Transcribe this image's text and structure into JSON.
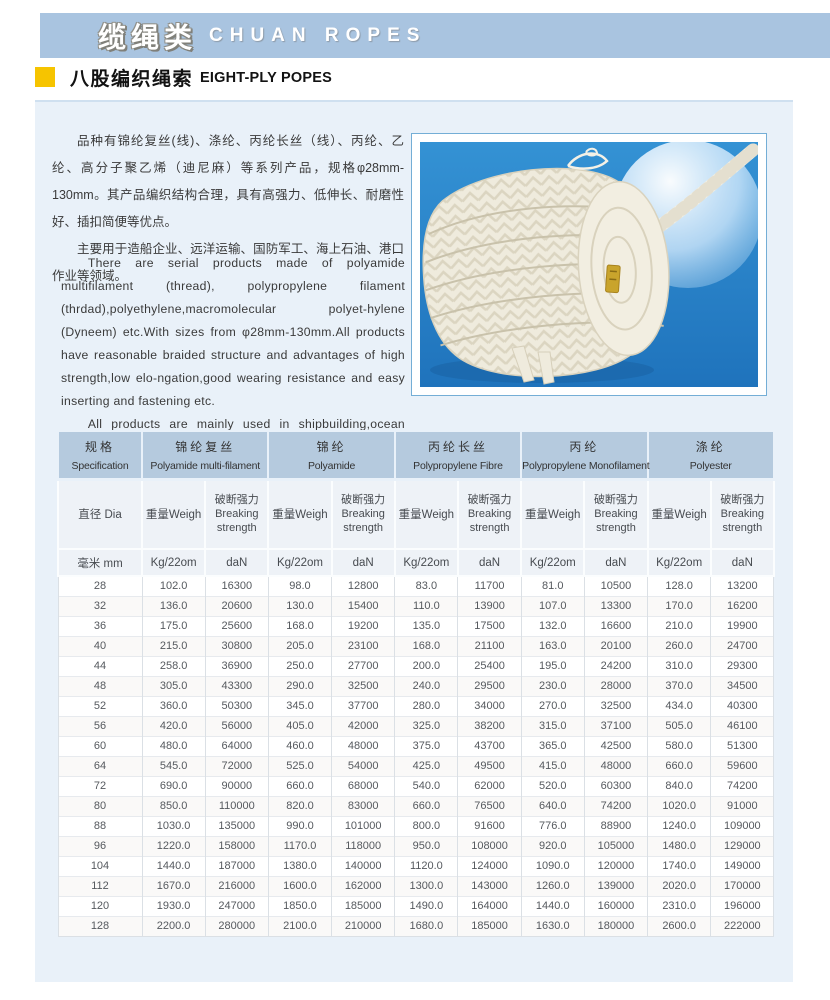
{
  "header": {
    "title_zh": "缆绳类",
    "title_en": "CHUAN ROPES",
    "subtitle_zh": "八股编织绳索",
    "subtitle_en": "EIGHT-PLY POPES"
  },
  "intro": {
    "zh_p1": "品种有锦纶复丝(线)、涤纶、丙纶长丝（线）、丙纶、乙纶、高分子聚乙烯（迪尼麻）等系列产品，规格φ28mm-130mm。其产品编织结构合理，具有高强力、低伸长、耐磨性好、插扣简便等优点。",
    "zh_p2": "主要用于造船企业、远洋运输、国防军工、海上石油、港口作业等领域。",
    "en_p1": "There are serial products made of polyamide multifilament (thread), polypropylene filament (thrdad),polyethylene,macromolecular polyet-hylene (Dyneem) etc.With sizes from φ28mm-130mm.All products have reasonable braided structure and advantages of high strength,low elo-ngation,good wearing resistance and easy  inserting and fastening etc.",
    "en_p2": "All products are mainly used in shipbuilding,ocean transportation, national defense and military industry,ocean petroleum,harbor works etc."
  },
  "photo_alt": "Coil of white eight-ply braided rope on blue background",
  "table": {
    "groups": [
      {
        "zh": "规格",
        "en": "Specification"
      },
      {
        "zh": "锦纶复丝",
        "en": "Polyamide multi-filament"
      },
      {
        "zh": "锦纶",
        "en": "Polyamide"
      },
      {
        "zh": "丙纶长丝",
        "en": "Polypropylene Fibre"
      },
      {
        "zh": "丙纶",
        "en": "Polypropylene Monofilament"
      },
      {
        "zh": "涤纶",
        "en": "Polyester"
      }
    ],
    "sub": {
      "dia": "直径 Dia",
      "weight": "重量Weigh",
      "strength_lines": [
        "破断强力",
        "Breaking",
        "strength"
      ]
    },
    "units": {
      "dia": "毫米 mm",
      "weight": "Kg/22om",
      "strength": "daN"
    },
    "rows": [
      [
        "28",
        "102.0",
        "16300",
        "98.0",
        "12800",
        "83.0",
        "11700",
        "81.0",
        "10500",
        "128.0",
        "13200"
      ],
      [
        "32",
        "136.0",
        "20600",
        "130.0",
        "15400",
        "110.0",
        "13900",
        "107.0",
        "13300",
        "170.0",
        "16200"
      ],
      [
        "36",
        "175.0",
        "25600",
        "168.0",
        "19200",
        "135.0",
        "17500",
        "132.0",
        "16600",
        "210.0",
        "19900"
      ],
      [
        "40",
        "215.0",
        "30800",
        "205.0",
        "23100",
        "168.0",
        "21100",
        "163.0",
        "20100",
        "260.0",
        "24700"
      ],
      [
        "44",
        "258.0",
        "36900",
        "250.0",
        "27700",
        "200.0",
        "25400",
        "195.0",
        "24200",
        "310.0",
        "29300"
      ],
      [
        "48",
        "305.0",
        "43300",
        "290.0",
        "32500",
        "240.0",
        "29500",
        "230.0",
        "28000",
        "370.0",
        "34500"
      ],
      [
        "52",
        "360.0",
        "50300",
        "345.0",
        "37700",
        "280.0",
        "34000",
        "270.0",
        "32500",
        "434.0",
        "40300"
      ],
      [
        "56",
        "420.0",
        "56000",
        "405.0",
        "42000",
        "325.0",
        "38200",
        "315.0",
        "37100",
        "505.0",
        "46100"
      ],
      [
        "60",
        "480.0",
        "64000",
        "460.0",
        "48000",
        "375.0",
        "43700",
        "365.0",
        "42500",
        "580.0",
        "51300"
      ],
      [
        "64",
        "545.0",
        "72000",
        "525.0",
        "54000",
        "425.0",
        "49500",
        "415.0",
        "48000",
        "660.0",
        "59600"
      ],
      [
        "72",
        "690.0",
        "90000",
        "660.0",
        "68000",
        "540.0",
        "62000",
        "520.0",
        "60300",
        "840.0",
        "74200"
      ],
      [
        "80",
        "850.0",
        "110000",
        "820.0",
        "83000",
        "660.0",
        "76500",
        "640.0",
        "74200",
        "1020.0",
        "91000"
      ],
      [
        "88",
        "1030.0",
        "135000",
        "990.0",
        "101000",
        "800.0",
        "91600",
        "776.0",
        "88900",
        "1240.0",
        "109000"
      ],
      [
        "96",
        "1220.0",
        "158000",
        "1170.0",
        "118000",
        "950.0",
        "108000",
        "920.0",
        "105000",
        "1480.0",
        "129000"
      ],
      [
        "104",
        "1440.0",
        "187000",
        "1380.0",
        "140000",
        "1120.0",
        "124000",
        "1090.0",
        "120000",
        "1740.0",
        "149000"
      ],
      [
        "112",
        "1670.0",
        "216000",
        "1600.0",
        "162000",
        "1300.0",
        "143000",
        "1260.0",
        "139000",
        "2020.0",
        "170000"
      ],
      [
        "120",
        "1930.0",
        "247000",
        "1850.0",
        "185000",
        "1490.0",
        "164000",
        "1440.0",
        "160000",
        "2310.0",
        "196000"
      ],
      [
        "128",
        "2200.0",
        "280000",
        "2100.0",
        "210000",
        "1680.0",
        "185000",
        "1630.0",
        "180000",
        "2600.0",
        "222000"
      ]
    ]
  },
  "colors": {
    "title_band": "#a9c4e0",
    "accent_yellow": "#f6c400",
    "panel": "#e9f1f9",
    "table_header": "#b5cade",
    "photo_blue": "#2385c9"
  }
}
